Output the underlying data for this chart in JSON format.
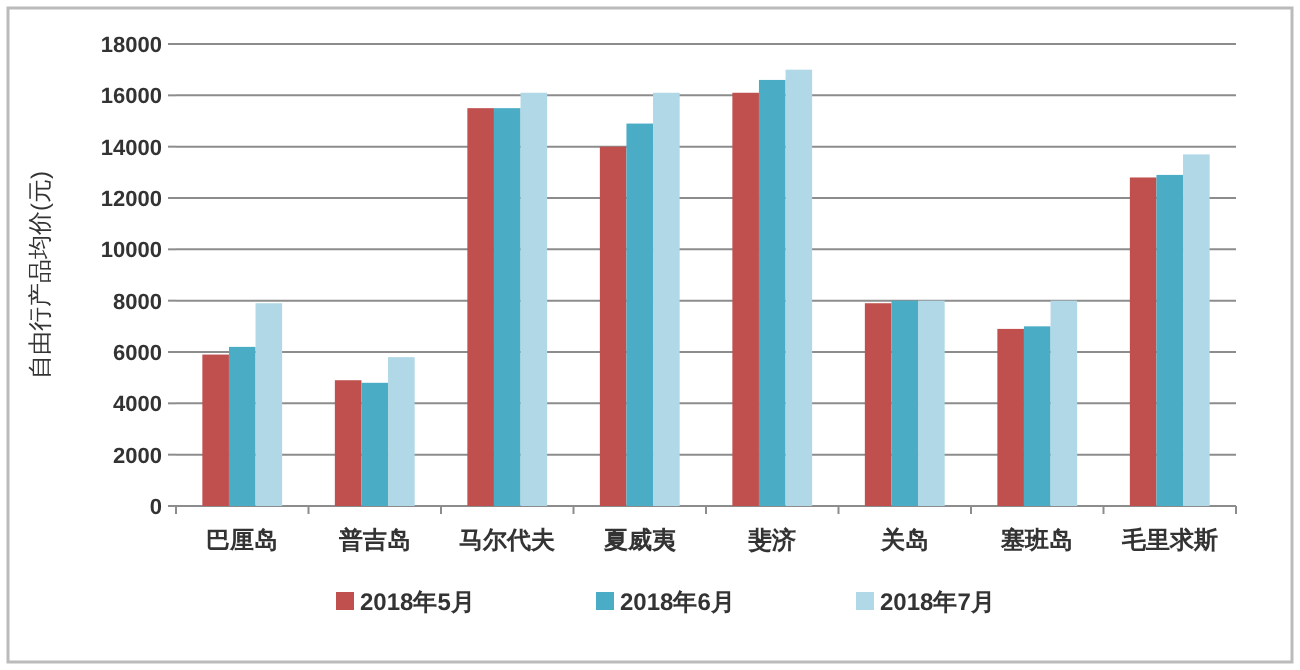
{
  "chart_data": {
    "type": "bar",
    "ylabel": "自由行产品均价(元)",
    "categories": [
      "巴厘岛",
      "普吉岛",
      "马尔代夫",
      "夏威夷",
      "斐济",
      "关岛",
      "塞班岛",
      "毛里求斯"
    ],
    "series": [
      {
        "name": "2018年5月",
        "color": "#c0504d",
        "values": [
          5900,
          4900,
          15500,
          14000,
          16100,
          7900,
          6900,
          12800
        ]
      },
      {
        "name": "2018年6月",
        "color": "#4bacc6",
        "values": [
          6200,
          4800,
          15500,
          14900,
          16600,
          8000,
          7000,
          12900
        ]
      },
      {
        "name": "2018年7月",
        "color": "#b0d8e6",
        "values": [
          7900,
          5800,
          16100,
          16100,
          17000,
          8000,
          8000,
          13700
        ]
      }
    ],
    "ylim": [
      0,
      18000
    ],
    "yticks": [
      0,
      2000,
      4000,
      6000,
      8000,
      10000,
      12000,
      14000,
      16000,
      18000
    ],
    "grid": "y",
    "legend": "bottom"
  }
}
